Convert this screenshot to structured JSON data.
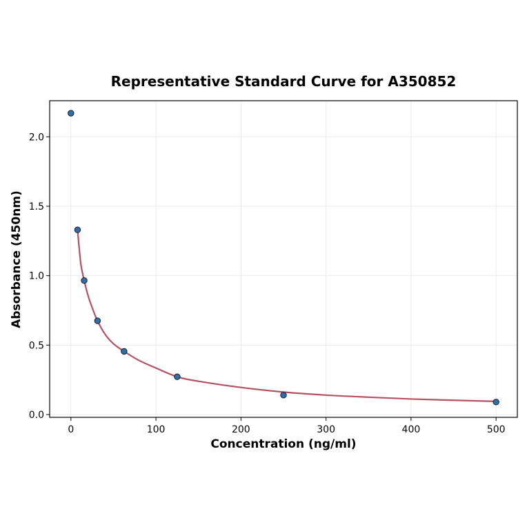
{
  "chart_data": {
    "type": "scatter",
    "title": "Representative Standard Curve for A350852",
    "xlabel": "Concentration (ng/ml)",
    "ylabel": "Absorbance (450nm)",
    "xlim": [
      -25,
      525
    ],
    "ylim": [
      -0.02,
      2.26
    ],
    "xticks": [
      0,
      100,
      200,
      300,
      400,
      500
    ],
    "yticks": [
      0.0,
      0.5,
      1.0,
      1.5,
      2.0
    ],
    "xtick_labels": [
      "0",
      "100",
      "200",
      "300",
      "400",
      "500"
    ],
    "ytick_labels": [
      "0.0",
      "0.5",
      "1.0",
      "1.5",
      "2.0"
    ],
    "grid": true,
    "series": [
      {
        "kind": "points",
        "x": [
          0,
          7.8,
          15.6,
          31.25,
          62.5,
          125,
          250,
          500
        ],
        "y": [
          2.17,
          1.33,
          0.965,
          0.675,
          0.455,
          0.272,
          0.14,
          0.09
        ],
        "color": "#2f6fa8"
      },
      {
        "kind": "fit-curve",
        "x": [
          7.8,
          10,
          12,
          15.6,
          20,
          25,
          31.25,
          40,
          50,
          62.5,
          80,
          100,
          125,
          150,
          200,
          250,
          300,
          350,
          400,
          450,
          500
        ],
        "y": [
          1.33,
          1.18,
          1.07,
          0.965,
          0.86,
          0.77,
          0.675,
          0.58,
          0.51,
          0.455,
          0.39,
          0.335,
          0.272,
          0.24,
          0.195,
          0.162,
          0.14,
          0.125,
          0.112,
          0.103,
          0.095
        ],
        "color": "#b5505f"
      }
    ]
  }
}
